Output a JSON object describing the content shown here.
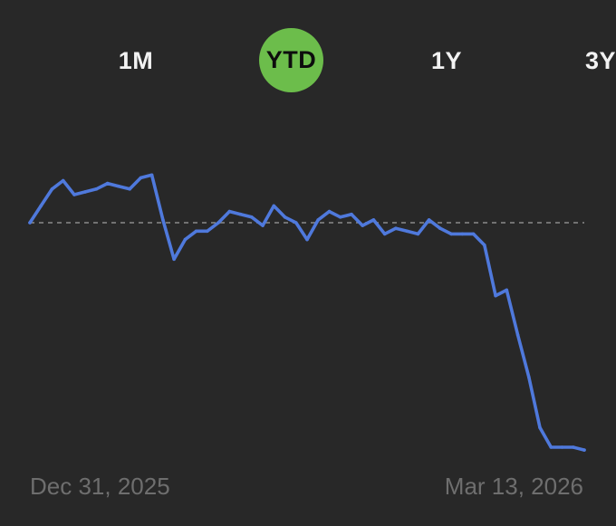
{
  "colors": {
    "background": "#282828",
    "line": "#4f79dc",
    "baseline": "#8a8a8a",
    "active_tab": "#6cbd4b",
    "tab_text": "#f2f2f2",
    "date_text": "#6e6e6e"
  },
  "range_tabs": [
    {
      "label": "1M",
      "active": false
    },
    {
      "label": "YTD",
      "active": true
    },
    {
      "label": "1Y",
      "active": false
    },
    {
      "label": "3Y",
      "active": false
    }
  ],
  "chart_data": {
    "type": "line",
    "x_start_label": "Dec 31, 2025",
    "x_end_label": "Mar 13, 2026",
    "baseline": "dashed reference line at the starting value",
    "grid": false,
    "y_axis_labels": false,
    "values": [
      0,
      6,
      12,
      15,
      10,
      11,
      12,
      14,
      13,
      12,
      16,
      17,
      1,
      -13,
      -6,
      -3,
      -3,
      0,
      4,
      3,
      2,
      -1,
      6,
      2,
      0,
      -6,
      1,
      4,
      2,
      3,
      -1,
      1,
      -4,
      -2,
      -3,
      -4,
      1,
      -2,
      -4,
      -4,
      -4,
      -8,
      -26,
      -24,
      -40,
      -55,
      -73,
      -80,
      -80,
      -80,
      -81
    ]
  }
}
